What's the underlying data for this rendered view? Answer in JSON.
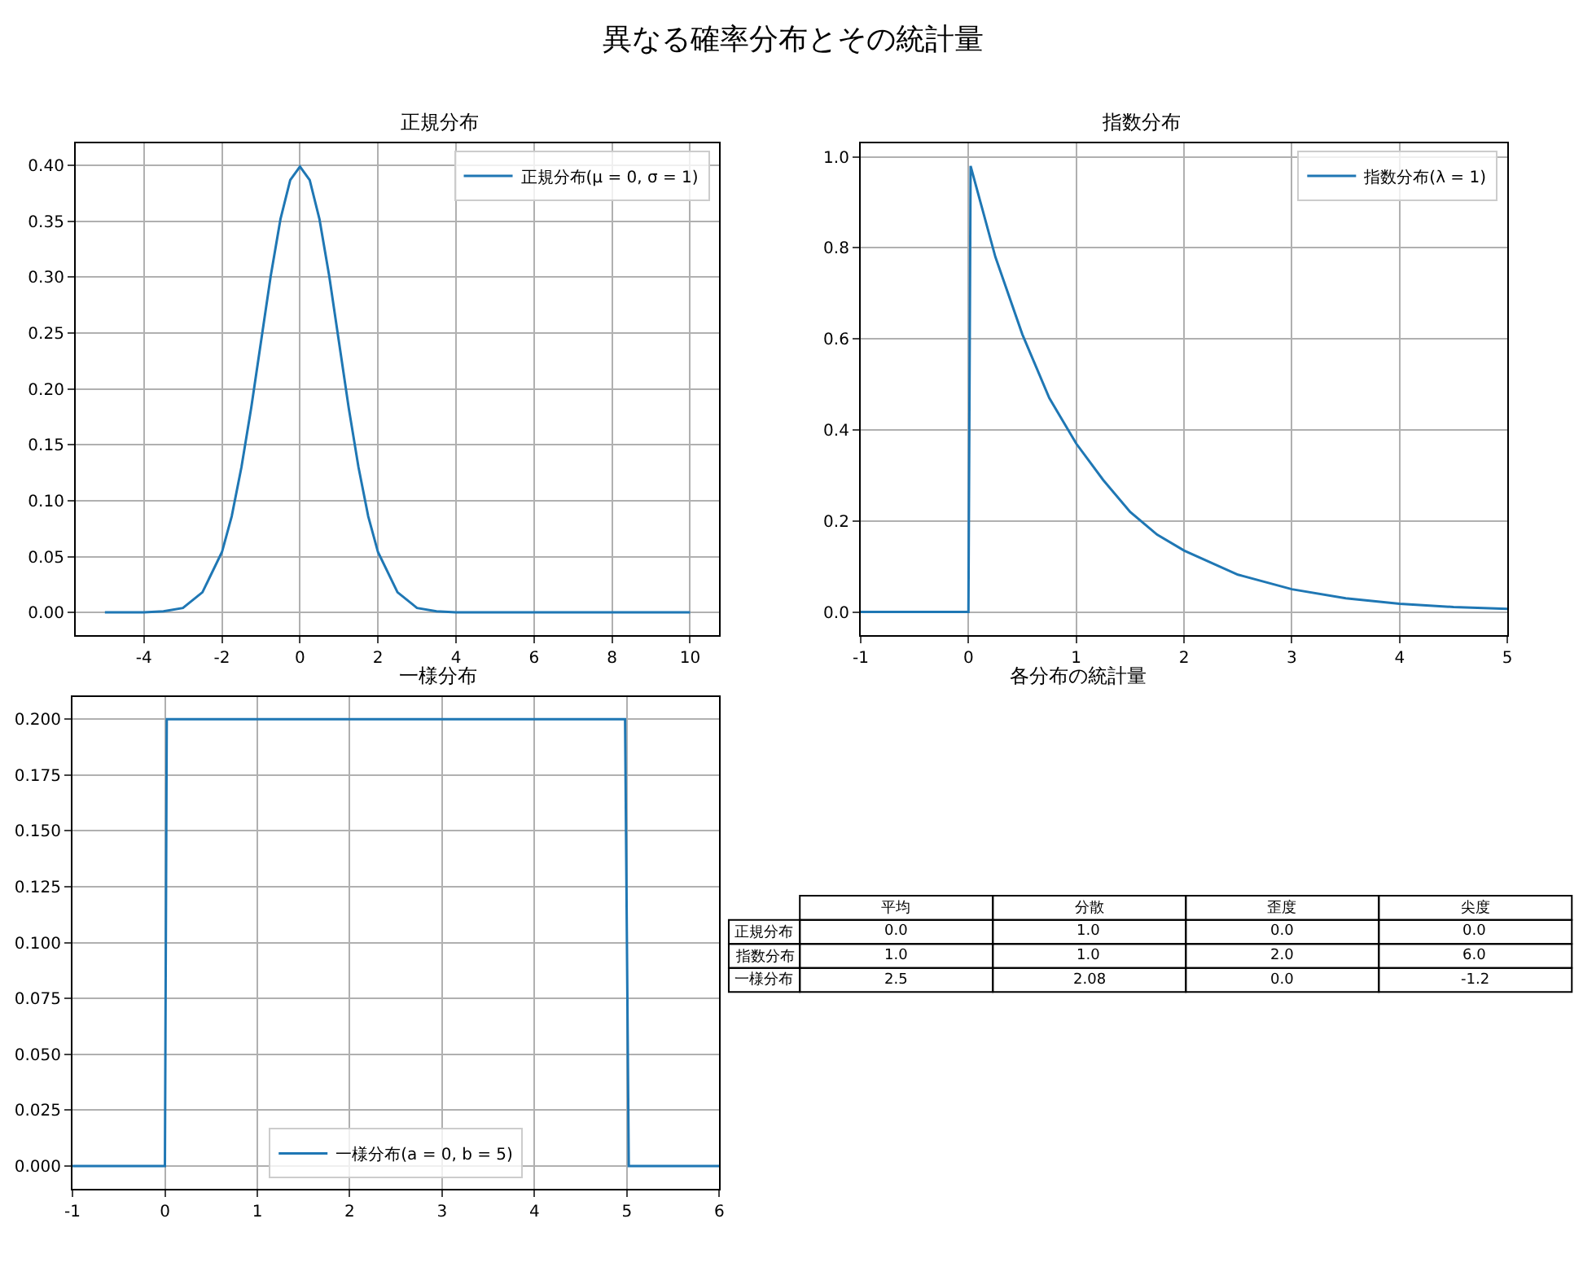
{
  "chart_data": [
    {
      "type": "line",
      "title": "正規分布",
      "annotations": [
        "異なる確率分布とその統計量"
      ],
      "x": [
        -5,
        -4,
        -3.5,
        -3,
        -2.5,
        -2,
        -1.75,
        -1.5,
        -1.25,
        -1,
        -0.75,
        -0.5,
        -0.25,
        0,
        0.25,
        0.5,
        0.75,
        1,
        1.25,
        1.5,
        1.75,
        2,
        2.5,
        3,
        3.5,
        4,
        5,
        6,
        8,
        10
      ],
      "series": [
        {
          "name": "正規分布(μ = 0, σ = 1)",
          "color": "#1f77b4",
          "values": [
            0.0,
            0.0,
            0.001,
            0.004,
            0.018,
            0.054,
            0.086,
            0.13,
            0.183,
            0.242,
            0.301,
            0.352,
            0.387,
            0.399,
            0.387,
            0.352,
            0.301,
            0.242,
            0.183,
            0.13,
            0.086,
            0.054,
            0.018,
            0.004,
            0.001,
            0.0,
            0.0,
            0.0,
            0.0,
            0.0
          ]
        }
      ],
      "xlim": [
        -5.75,
        10.75
      ],
      "xticks": [
        -4,
        -2,
        0,
        2,
        4,
        6,
        8,
        10
      ],
      "ylim": [
        -0.02,
        0.42
      ],
      "yticks": [
        {
          "value": 0,
          "label": "0.00"
        },
        0.05,
        {
          "value": 0.1,
          "label": "0.10"
        },
        0.15,
        {
          "value": 0.2,
          "label": "0.20"
        },
        0.25,
        {
          "value": 0.3,
          "label": "0.30"
        },
        0.35,
        {
          "value": 0.4,
          "label": "0.40"
        }
      ],
      "grid": true,
      "legend": "top right"
    },
    {
      "type": "line",
      "title": "指数分布",
      "x": [
        -1,
        0,
        0.02,
        0.25,
        0.5,
        0.75,
        1,
        1.25,
        1.5,
        1.75,
        2,
        2.5,
        3,
        3.5,
        4,
        4.5,
        5
      ],
      "series": [
        {
          "name": "指数分布(λ = 1)",
          "color": "#1f77b4",
          "values": [
            0,
            0,
            0.98,
            0.78,
            0.61,
            0.47,
            0.37,
            0.29,
            0.22,
            0.17,
            0.135,
            0.082,
            0.05,
            0.03,
            0.018,
            0.011,
            0.007
          ]
        }
      ],
      "xlim": [
        -1,
        5
      ],
      "xticks": [
        -1,
        0,
        1,
        2,
        3,
        4,
        5
      ],
      "ylim": [
        -0.05,
        1.03
      ],
      "yticks": [
        {
          "value": 0,
          "label": "0.0"
        },
        0.2,
        0.4,
        0.6,
        0.8,
        {
          "value": 1,
          "label": "1.0"
        }
      ],
      "grid": true,
      "legend": "top right"
    },
    {
      "type": "line",
      "title": "一様分布",
      "x": [
        -1,
        0,
        0.02,
        4.98,
        5.02,
        6
      ],
      "series": [
        {
          "name": "一様分布(a = 0, b = 5)",
          "color": "#1f77b4",
          "values": [
            0,
            0,
            0.2,
            0.2,
            0,
            0
          ]
        }
      ],
      "xlim": [
        -1,
        6
      ],
      "xticks": [
        -1,
        0,
        1,
        2,
        3,
        4,
        5,
        6
      ],
      "ylim": [
        -0.01,
        0.21
      ],
      "yticks": [
        {
          "value": 0,
          "label": "0.000"
        },
        0.025,
        {
          "value": 0.05,
          "label": "0.050"
        },
        0.075,
        {
          "value": 0.1,
          "label": "0.100"
        },
        0.125,
        {
          "value": 0.15,
          "label": "0.150"
        },
        0.175,
        {
          "value": 0.2,
          "label": "0.200"
        }
      ],
      "grid": true,
      "legend": "bottom"
    },
    {
      "type": "heatmap",
      "title": "各分布の統計量",
      "categories": [
        "平均",
        "分散",
        "歪度",
        "尖度"
      ],
      "y_categories": [
        "正規分布",
        "指数分布",
        "一様分布"
      ],
      "cells": [
        [
          0.0,
          1.0,
          0.0,
          0.0
        ],
        [
          1.0,
          1.0,
          2.0,
          6.0
        ],
        [
          2.5,
          2.08,
          0.0,
          -1.2
        ]
      ],
      "cell_labels": [
        [
          "0.0",
          "1.0",
          "0.0",
          "0.0"
        ],
        [
          "1.0",
          "1.0",
          "2.0",
          "6.0"
        ],
        [
          "2.5",
          "2.08",
          "0.0",
          "-1.2"
        ]
      ]
    }
  ]
}
